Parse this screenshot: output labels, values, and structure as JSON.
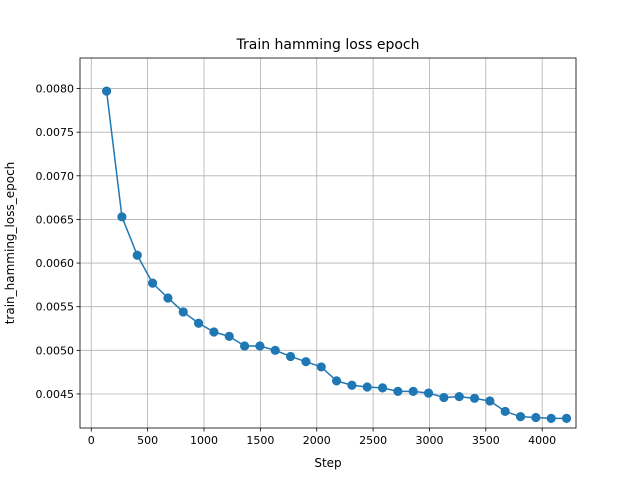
{
  "chart_data": {
    "type": "line",
    "title": "Train hamming loss epoch",
    "xlabel": "Step",
    "ylabel": "train_hamming_loss_epoch",
    "xlim": [
      -100,
      4300
    ],
    "ylim": [
      0.00411,
      0.00835
    ],
    "grid": true,
    "x_ticks": [
      0,
      500,
      1000,
      1500,
      2000,
      2500,
      3000,
      3500,
      4000
    ],
    "x_tick_labels": [
      "0",
      "500",
      "1000",
      "1500",
      "2000",
      "2500",
      "3000",
      "3500",
      "4000"
    ],
    "y_ticks": [
      0.0045,
      0.005,
      0.0055,
      0.006,
      0.0065,
      0.007,
      0.0075,
      0.008
    ],
    "y_tick_labels": [
      "0.0045",
      "0.0050",
      "0.0055",
      "0.0060",
      "0.0065",
      "0.0070",
      "0.0075",
      "0.0080"
    ],
    "series": [
      {
        "color": "#1f77b4",
        "marker": "circle",
        "x": [
          136,
          272,
          408,
          544,
          680,
          816,
          952,
          1088,
          1224,
          1360,
          1496,
          1632,
          1768,
          1904,
          2040,
          2176,
          2312,
          2448,
          2584,
          2720,
          2856,
          2992,
          3128,
          3264,
          3400,
          3536,
          3672,
          3808,
          3944,
          4080,
          4216
        ],
        "y": [
          0.00797,
          0.00653,
          0.00609,
          0.00577,
          0.0056,
          0.00544,
          0.00531,
          0.00521,
          0.00516,
          0.00505,
          0.00505,
          0.005,
          0.00493,
          0.00487,
          0.00481,
          0.00465,
          0.0046,
          0.00458,
          0.00457,
          0.00453,
          0.00453,
          0.00451,
          0.00446,
          0.00447,
          0.00445,
          0.00442,
          0.0043,
          0.00424,
          0.00423,
          0.00422,
          0.00422
        ]
      }
    ]
  }
}
